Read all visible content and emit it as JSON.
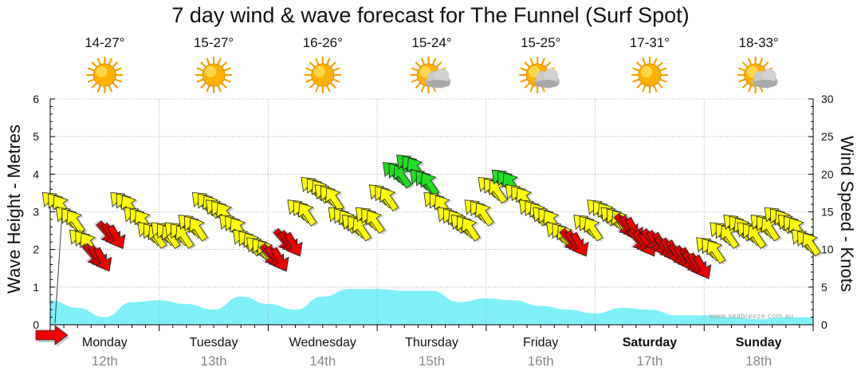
{
  "page": {
    "title": "7 day wind & wave forecast for The Funnel (Surf Spot)",
    "watermark": "www.seabreeze.com.au"
  },
  "forecast_days": [
    {
      "day": "Monday",
      "date": "12th",
      "temp": "14-27°",
      "icon": "sun-icon",
      "weekend": false
    },
    {
      "day": "Tuesday",
      "date": "13th",
      "temp": "15-27°",
      "icon": "sun-icon",
      "weekend": false
    },
    {
      "day": "Wednesday",
      "date": "14th",
      "temp": "16-26°",
      "icon": "sun-icon",
      "weekend": false
    },
    {
      "day": "Thursday",
      "date": "15th",
      "temp": "15-24°",
      "icon": "sun-cloud-icon",
      "weekend": false
    },
    {
      "day": "Friday",
      "date": "16th",
      "temp": "15-25°",
      "icon": "sun-cloud-icon",
      "weekend": false
    },
    {
      "day": "Saturday",
      "date": "17th",
      "temp": "17-31°",
      "icon": "sun-icon",
      "weekend": true
    },
    {
      "day": "Sunday",
      "date": "18th",
      "temp": "18-33°",
      "icon": "sun-cloud-icon",
      "weekend": true
    }
  ],
  "colors": {
    "wave_fill": "#7ff0f7",
    "wind_light": "#ffff00",
    "wind_moderate": "#22dd22",
    "wind_offshore": "#ee0000",
    "grid": "#999999"
  },
  "chart_data": {
    "type": "area",
    "xlabel": "",
    "ylabel": "Wave Height - Metres",
    "y2label": "Wind Speed - Knots",
    "ylim": [
      0,
      6
    ],
    "y2lim": [
      0,
      30
    ],
    "yticks": [
      "0",
      "1",
      "2",
      "3",
      "4",
      "5",
      "6"
    ],
    "y2ticks": [
      "0",
      "5",
      "10",
      "15",
      "20",
      "25",
      "30"
    ],
    "grid": true,
    "x_unit": "days from Monday 00:00",
    "wave_height": {
      "name": "Wave Height",
      "x": [
        0,
        0.25,
        0.5,
        0.75,
        1,
        1.25,
        1.5,
        1.75,
        2,
        2.25,
        2.5,
        2.75,
        3,
        3.25,
        3.5,
        3.75,
        4,
        4.25,
        4.5,
        4.75,
        5,
        5.25,
        5.5,
        5.75,
        6,
        6.25,
        6.5,
        6.75,
        7
      ],
      "values": [
        0.65,
        0.45,
        0.2,
        0.6,
        0.65,
        0.55,
        0.4,
        0.75,
        0.55,
        0.4,
        0.75,
        0.95,
        0.95,
        0.9,
        0.9,
        0.6,
        0.7,
        0.65,
        0.5,
        0.4,
        0.3,
        0.45,
        0.4,
        0.25,
        0.25,
        0.2,
        0.15,
        0.2,
        0.2
      ]
    },
    "wind": {
      "name": "Wind Speed (knots)",
      "x": [
        0,
        0.125,
        0.25,
        0.375,
        0.5,
        0.625,
        0.75,
        0.875,
        1,
        1.125,
        1.25,
        1.375,
        1.5,
        1.625,
        1.75,
        1.875,
        2,
        2.125,
        2.25,
        2.375,
        2.5,
        2.625,
        2.75,
        2.875,
        3,
        3.125,
        3.25,
        3.375,
        3.5,
        3.625,
        3.75,
        3.875,
        4,
        4.125,
        4.25,
        4.375,
        4.5,
        4.625,
        4.75,
        4.875,
        5,
        5.125,
        5.25,
        5.375,
        5.5,
        5.625,
        5.75,
        5.875,
        6,
        6.125,
        6.25,
        6.375,
        6.5,
        6.625,
        6.75,
        6.875
      ],
      "values": [
        16,
        14,
        11,
        9,
        12,
        16,
        14,
        12,
        12,
        12,
        13,
        16,
        15,
        13,
        11,
        10,
        9,
        11,
        15,
        18,
        17,
        14,
        13,
        14,
        17,
        20,
        21,
        19,
        16,
        14,
        13,
        15,
        18,
        19,
        17,
        15,
        14,
        12,
        11,
        13,
        15,
        14,
        13,
        11,
        11,
        10,
        9,
        8,
        10,
        12,
        13,
        12,
        13,
        14,
        13,
        11
      ],
      "category": [
        "light",
        "light",
        "light",
        "offshore",
        "offshore",
        "light",
        "light",
        "light",
        "light",
        "light",
        "light",
        "light",
        "light",
        "light",
        "light",
        "light",
        "offshore",
        "offshore",
        "light",
        "light",
        "light",
        "light",
        "light",
        "light",
        "light",
        "moderate",
        "moderate",
        "moderate",
        "light",
        "light",
        "light",
        "light",
        "light",
        "moderate",
        "light",
        "light",
        "light",
        "light",
        "offshore",
        "light",
        "light",
        "light",
        "offshore",
        "offshore",
        "offshore",
        "offshore",
        "offshore",
        "offshore",
        "light",
        "light",
        "light",
        "light",
        "light",
        "light",
        "light",
        "light"
      ]
    }
  }
}
